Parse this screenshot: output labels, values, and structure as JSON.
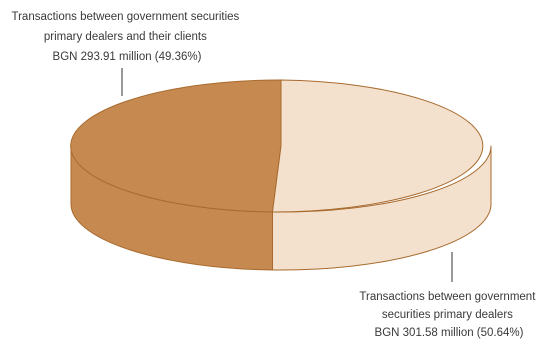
{
  "chart_data": {
    "type": "pie",
    "title": "",
    "slices": [
      {
        "label_lines": [
          "Transactions between government securities",
          "primary dealers and their clients",
          "BGN 293.91 million (49.36%)"
        ],
        "value": 293.91,
        "percent": 49.36,
        "color_top": "#c68a50",
        "color_side": "#c68a50"
      },
      {
        "label_lines": [
          "Transactions between government",
          "securities primary dealers",
          "BGN 301.58 million (50.64%)"
        ],
        "value": 301.58,
        "percent": 50.64,
        "color_top": "#f3e1ce",
        "color_side": "#f3e1ce"
      }
    ],
    "edge_color": "#a86a2e"
  }
}
